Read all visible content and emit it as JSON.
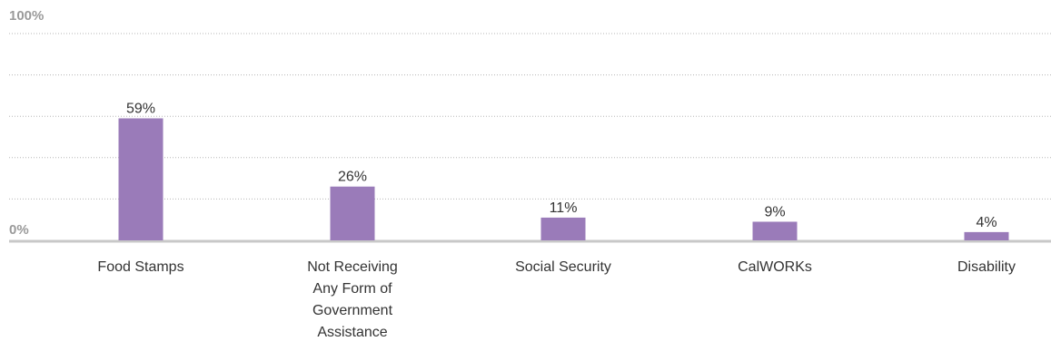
{
  "chart_data": {
    "type": "bar",
    "categories": [
      [
        "Food Stamps"
      ],
      [
        "Not Receiving",
        "Any Form of",
        "Government",
        "Assistance"
      ],
      [
        "Social Security"
      ],
      [
        "CalWORKs"
      ],
      [
        "Disability"
      ]
    ],
    "values": [
      59,
      26,
      11,
      9,
      4
    ],
    "data_labels": [
      "59%",
      "26%",
      "11%",
      "9%",
      "4%"
    ],
    "ylim": [
      0,
      100
    ],
    "y_tick_labels": {
      "top": "100%",
      "bottom": "0%"
    },
    "grid": true,
    "colors": {
      "bar": "#9a7bb9",
      "grid": "#b5b5b5",
      "baseline": "#c8c8c8"
    }
  }
}
